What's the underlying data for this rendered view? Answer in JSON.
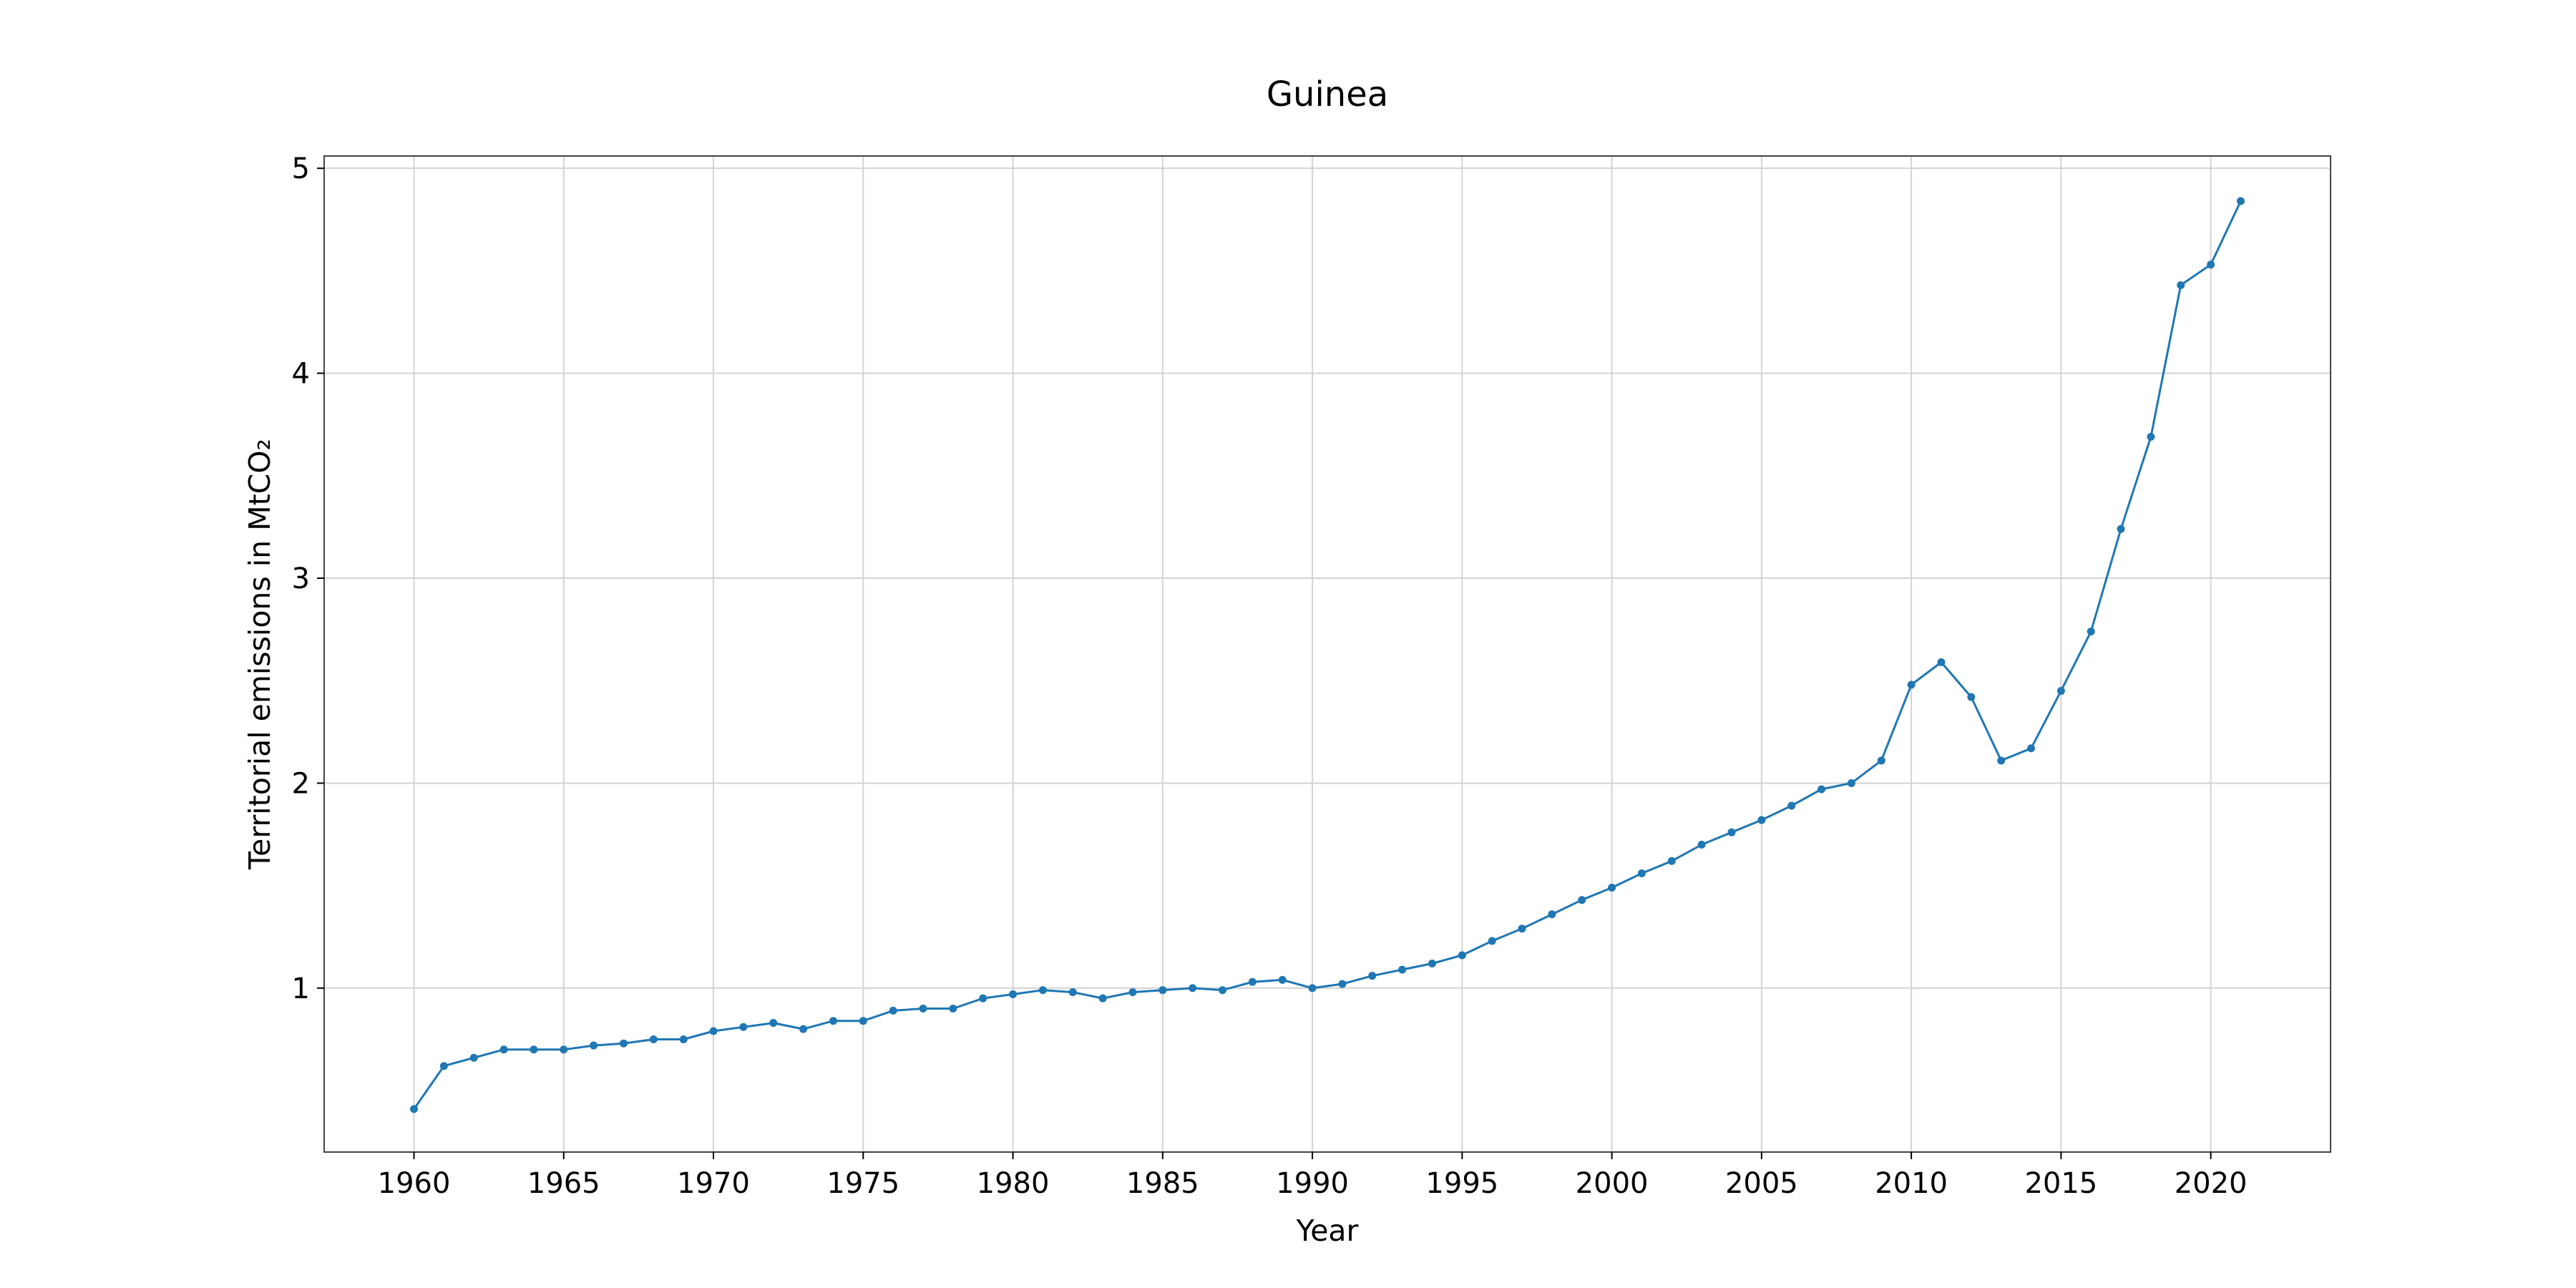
{
  "chart_data": {
    "type": "line",
    "title": "Guinea",
    "xlabel": "Year",
    "ylabel": "Territorial emissions in MtCO₂",
    "xlim": [
      1957,
      2024
    ],
    "ylim": [
      0.2,
      5.06
    ],
    "x_ticks": [
      1960,
      1965,
      1970,
      1975,
      1980,
      1985,
      1990,
      1995,
      2000,
      2005,
      2010,
      2015,
      2020
    ],
    "y_ticks": [
      1,
      2,
      3,
      4,
      5
    ],
    "grid": true,
    "line_color": "#1f77b4",
    "grid_color": "#d3d3d3",
    "series": [
      {
        "x": [
          1960,
          1961,
          1962,
          1963,
          1964,
          1965,
          1966,
          1967,
          1968,
          1969,
          1970,
          1971,
          1972,
          1973,
          1974,
          1975,
          1976,
          1977,
          1978,
          1979,
          1980,
          1981,
          1982,
          1983,
          1984,
          1985,
          1986,
          1987,
          1988,
          1989,
          1990,
          1991,
          1992,
          1993,
          1994,
          1995,
          1996,
          1997,
          1998,
          1999,
          2000,
          2001,
          2002,
          2003,
          2004,
          2005,
          2006,
          2007,
          2008,
          2009,
          2010,
          2011,
          2012,
          2013,
          2014,
          2015,
          2016,
          2017,
          2018,
          2019,
          2020,
          2021
        ],
        "values": [
          0.41,
          0.62,
          0.66,
          0.7,
          0.7,
          0.7,
          0.72,
          0.73,
          0.75,
          0.75,
          0.79,
          0.81,
          0.83,
          0.8,
          0.84,
          0.84,
          0.89,
          0.9,
          0.9,
          0.95,
          0.97,
          0.99,
          0.98,
          0.95,
          0.98,
          0.99,
          1.0,
          0.99,
          1.03,
          1.04,
          1.0,
          1.02,
          1.06,
          1.09,
          1.12,
          1.16,
          1.23,
          1.29,
          1.36,
          1.43,
          1.49,
          1.56,
          1.62,
          1.7,
          1.76,
          1.82,
          1.89,
          1.97,
          2.0,
          2.11,
          2.48,
          2.59,
          2.42,
          2.11,
          2.17,
          2.45,
          2.74,
          3.24,
          3.69,
          4.43,
          4.53,
          4.84
        ]
      }
    ]
  }
}
